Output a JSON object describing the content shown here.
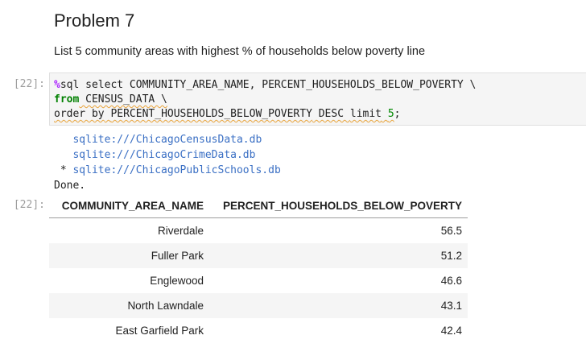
{
  "markdown": {
    "title": "Problem 7",
    "description": "List 5 community areas with highest % of households below poverty line"
  },
  "input_cell": {
    "prompt": "[22]:",
    "line1_magic": "%",
    "line1_rest": "sql select COMMUNITY_AREA_NAME, PERCENT_HOUSEHOLDS_BELOW_POVERTY \\",
    "line2_keyword": "from",
    "line2_rest": " CENSUS_DATA \\",
    "line3_order_by": "order by",
    "line3_space": " ",
    "line3_column": "PERCENT_HOUSEHOLDS_BELOW_POVERTY",
    "line3_desc": " DESC ",
    "line3_limit": "limit",
    "line3_space2": " ",
    "line3_number": "5",
    "line3_end": ";"
  },
  "output_cell": {
    "prompt": "[22]:",
    "connections": [
      {
        "marker": "   ",
        "url": "sqlite:///ChicagoCensusData.db"
      },
      {
        "marker": "   ",
        "url": "sqlite:///ChicagoCrimeData.db"
      },
      {
        "marker": " * ",
        "url": "sqlite:///ChicagoPublicSchools.db"
      }
    ],
    "done_text": "Done.",
    "table": {
      "headers": [
        "COMMUNITY_AREA_NAME",
        "PERCENT_HOUSEHOLDS_BELOW_POVERTY"
      ],
      "rows": [
        [
          "Riverdale",
          "56.5"
        ],
        [
          "Fuller Park",
          "51.2"
        ],
        [
          "Englewood",
          "46.6"
        ],
        [
          "North Lawndale",
          "43.1"
        ],
        [
          "East Garfield Park",
          "42.4"
        ]
      ]
    }
  }
}
